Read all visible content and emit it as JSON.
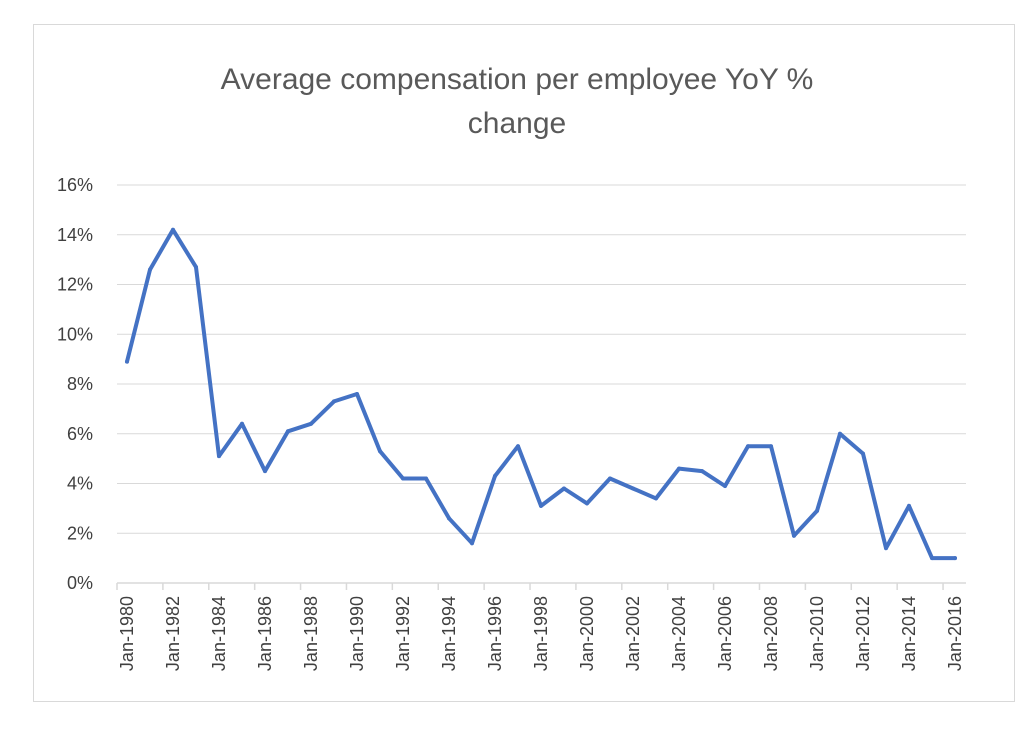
{
  "chart_data": {
    "type": "line",
    "title_lines": [
      "Average compensation per employee YoY %",
      "change"
    ],
    "xlabel": "",
    "ylabel": "",
    "ylim": [
      0,
      16
    ],
    "yticks": [
      "0%",
      "2%",
      "4%",
      "6%",
      "8%",
      "10%",
      "12%",
      "14%",
      "16%"
    ],
    "grid": true,
    "legend": "none",
    "series_color": "#4472C4",
    "grid_color": "#d9d9d9",
    "xtick_labels": [
      "Jan-1980",
      "Jan-1982",
      "Jan-1984",
      "Jan-1986",
      "Jan-1988",
      "Jan-1990",
      "Jan-1992",
      "Jan-1994",
      "Jan-1996",
      "Jan-1998",
      "Jan-2000",
      "Jan-2002",
      "Jan-2004",
      "Jan-2006",
      "Jan-2008",
      "Jan-2010",
      "Jan-2012",
      "Jan-2014",
      "Jan-2016"
    ],
    "x": [
      "Jan-1980",
      "Jan-1981",
      "Jan-1982",
      "Jan-1983",
      "Jan-1984",
      "Jan-1985",
      "Jan-1986",
      "Jan-1987",
      "Jan-1988",
      "Jan-1989",
      "Jan-1990",
      "Jan-1991",
      "Jan-1992",
      "Jan-1993",
      "Jan-1994",
      "Jan-1995",
      "Jan-1996",
      "Jan-1997",
      "Jan-1998",
      "Jan-1999",
      "Jan-2000",
      "Jan-2001",
      "Jan-2002",
      "Jan-2003",
      "Jan-2004",
      "Jan-2005",
      "Jan-2006",
      "Jan-2007",
      "Jan-2008",
      "Jan-2009",
      "Jan-2010",
      "Jan-2011",
      "Jan-2012",
      "Jan-2013",
      "Jan-2014",
      "Jan-2015",
      "Jan-2016"
    ],
    "series": [
      {
        "values": [
          8.9,
          12.6,
          14.2,
          12.7,
          5.1,
          6.4,
          4.5,
          6.1,
          6.4,
          7.3,
          7.6,
          5.3,
          4.2,
          4.2,
          2.6,
          1.6,
          4.3,
          5.5,
          3.1,
          3.8,
          3.2,
          4.2,
          3.8,
          3.4,
          4.6,
          4.5,
          3.9,
          5.5,
          5.5,
          1.9,
          2.9,
          6.0,
          5.2,
          1.4,
          3.1,
          1.0,
          1.0
        ]
      }
    ]
  }
}
